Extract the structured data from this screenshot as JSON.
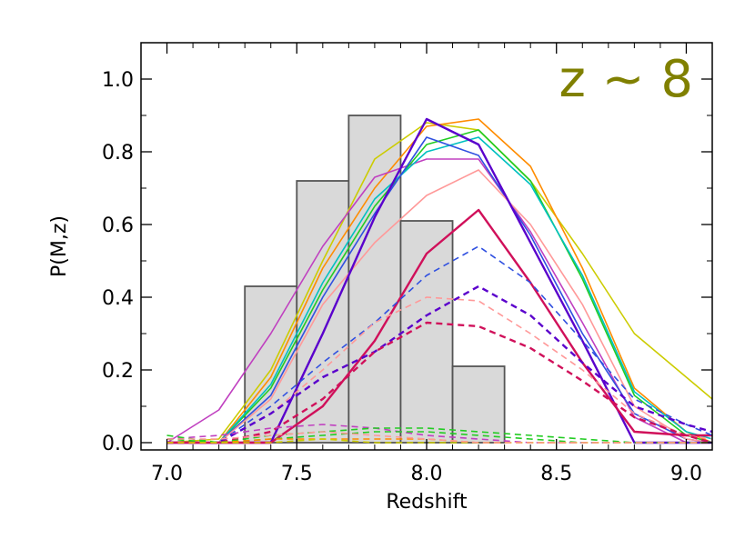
{
  "chart_data": {
    "type": "line",
    "title": "",
    "annotation": "z ~ 8",
    "annotation_color": "#808000",
    "xlabel": "Redshift",
    "ylabel": "P(M,z)",
    "xlim": [
      6.9,
      9.1
    ],
    "ylim": [
      -0.02,
      1.1
    ],
    "xticks": [
      "7.0",
      "7.5",
      "8.0",
      "8.5",
      "9.0"
    ],
    "xtick_values": [
      7.0,
      7.5,
      8.0,
      8.5,
      9.0
    ],
    "yticks": [
      "0.0",
      "0.2",
      "0.4",
      "0.6",
      "0.8",
      "1.0"
    ],
    "ytick_values": [
      0.0,
      0.2,
      0.4,
      0.6,
      0.8,
      1.0
    ],
    "grid": false,
    "histogram": {
      "fill": "#d9d9d9",
      "stroke": "#555555",
      "bins": [
        {
          "x0": 7.3,
          "x1": 7.5,
          "value": 0.43
        },
        {
          "x0": 7.5,
          "x1": 7.7,
          "value": 0.72
        },
        {
          "x0": 7.7,
          "x1": 7.9,
          "value": 0.9
        },
        {
          "x0": 7.9,
          "x1": 8.1,
          "value": 0.61
        },
        {
          "x0": 8.1,
          "x1": 8.3,
          "value": 0.21
        }
      ]
    },
    "x": [
      7.0,
      7.2,
      7.4,
      7.6,
      7.8,
      8.0,
      8.2,
      8.4,
      8.6,
      8.8,
      9.0,
      9.1
    ],
    "series": [
      {
        "color": "#cccc00",
        "style": "solid",
        "width": 1.6,
        "values": [
          0.0,
          0.01,
          0.2,
          0.5,
          0.78,
          0.88,
          0.86,
          0.72,
          0.52,
          0.3,
          0.18,
          0.12
        ]
      },
      {
        "color": "#ff8c00",
        "style": "solid",
        "width": 1.6,
        "values": [
          0.0,
          0.0,
          0.18,
          0.48,
          0.7,
          0.87,
          0.89,
          0.76,
          0.48,
          0.15,
          0.03,
          0.0
        ]
      },
      {
        "color": "#c040c0",
        "style": "solid",
        "width": 1.6,
        "values": [
          0.0,
          0.09,
          0.3,
          0.54,
          0.73,
          0.78,
          0.78,
          0.58,
          0.33,
          0.07,
          0.0,
          0.0
        ]
      },
      {
        "color": "#22cc22",
        "style": "solid",
        "width": 1.6,
        "values": [
          0.0,
          0.0,
          0.15,
          0.42,
          0.65,
          0.82,
          0.86,
          0.72,
          0.45,
          0.13,
          0.02,
          0.0
        ]
      },
      {
        "color": "#00c0c0",
        "style": "solid",
        "width": 1.6,
        "values": [
          0.0,
          0.0,
          0.16,
          0.44,
          0.67,
          0.8,
          0.84,
          0.71,
          0.46,
          0.14,
          0.03,
          0.01
        ]
      },
      {
        "color": "#3050e0",
        "style": "solid",
        "width": 1.6,
        "values": [
          0.0,
          0.0,
          0.13,
          0.4,
          0.63,
          0.84,
          0.79,
          0.57,
          0.3,
          0.08,
          0.01,
          0.0
        ]
      },
      {
        "color": "#ff9999",
        "style": "solid",
        "width": 1.6,
        "values": [
          0.0,
          0.0,
          0.12,
          0.38,
          0.55,
          0.68,
          0.75,
          0.6,
          0.38,
          0.1,
          0.01,
          0.0
        ]
      },
      {
        "color": "#5a00cc",
        "style": "solid",
        "width": 2.4,
        "values": [
          0.0,
          0.0,
          0.0,
          0.3,
          0.62,
          0.89,
          0.82,
          0.55,
          0.28,
          0.0,
          0.0,
          0.0
        ]
      },
      {
        "color": "#d0105a",
        "style": "solid",
        "width": 2.4,
        "values": [
          0.0,
          0.0,
          0.0,
          0.1,
          0.28,
          0.52,
          0.64,
          0.44,
          0.22,
          0.03,
          0.02,
          0.02
        ]
      },
      {
        "color": "#3050e0",
        "style": "dashed",
        "width": 1.6,
        "values": [
          0.0,
          0.0,
          0.1,
          0.22,
          0.33,
          0.46,
          0.54,
          0.44,
          0.28,
          0.12,
          0.05,
          0.02
        ]
      },
      {
        "color": "#ff9999",
        "style": "dashed",
        "width": 1.6,
        "values": [
          0.0,
          0.0,
          0.08,
          0.2,
          0.33,
          0.4,
          0.39,
          0.3,
          0.2,
          0.08,
          0.02,
          0.01
        ]
      },
      {
        "color": "#5a00cc",
        "style": "dashed",
        "width": 2.4,
        "values": [
          0.0,
          0.0,
          0.08,
          0.18,
          0.25,
          0.35,
          0.43,
          0.35,
          0.22,
          0.1,
          0.05,
          0.03
        ]
      },
      {
        "color": "#d0105a",
        "style": "dashed",
        "width": 2.4,
        "values": [
          0.0,
          0.0,
          0.03,
          0.12,
          0.25,
          0.33,
          0.32,
          0.26,
          0.17,
          0.07,
          0.02,
          0.0
        ]
      },
      {
        "color": "#c040c0",
        "style": "dashed",
        "width": 1.6,
        "values": [
          0.01,
          0.02,
          0.04,
          0.05,
          0.04,
          0.02,
          0.01,
          0.0,
          0.0,
          0.0,
          0.0,
          0.0
        ]
      },
      {
        "color": "#22cc22",
        "style": "dashed",
        "width": 1.6,
        "values": [
          0.02,
          0.0,
          0.02,
          0.03,
          0.04,
          0.04,
          0.03,
          0.02,
          0.01,
          0.0,
          0.0,
          0.0
        ]
      },
      {
        "color": "#22cc22",
        "style": "dashed",
        "width": 1.6,
        "values": [
          0.01,
          0.0,
          0.01,
          0.02,
          0.03,
          0.03,
          0.02,
          0.01,
          0.0,
          0.0,
          0.0,
          0.0
        ]
      },
      {
        "color": "#ff8c00",
        "style": "dashed",
        "width": 1.6,
        "values": [
          0.0,
          0.0,
          0.01,
          0.01,
          0.01,
          0.01,
          0.0,
          0.0,
          0.0,
          0.0,
          0.0,
          0.0
        ]
      },
      {
        "color": "#cccc00",
        "style": "dashed",
        "width": 1.6,
        "values": [
          0.0,
          0.0,
          0.0,
          0.01,
          0.0,
          0.0,
          0.0,
          0.0,
          0.0,
          0.0,
          0.0,
          0.0
        ]
      },
      {
        "color": "#ff9999",
        "style": "dashed",
        "width": 1.6,
        "values": [
          0.01,
          0.01,
          0.02,
          0.03,
          0.02,
          0.01,
          0.0,
          0.0,
          0.0,
          0.0,
          0.0,
          0.0
        ]
      }
    ]
  }
}
